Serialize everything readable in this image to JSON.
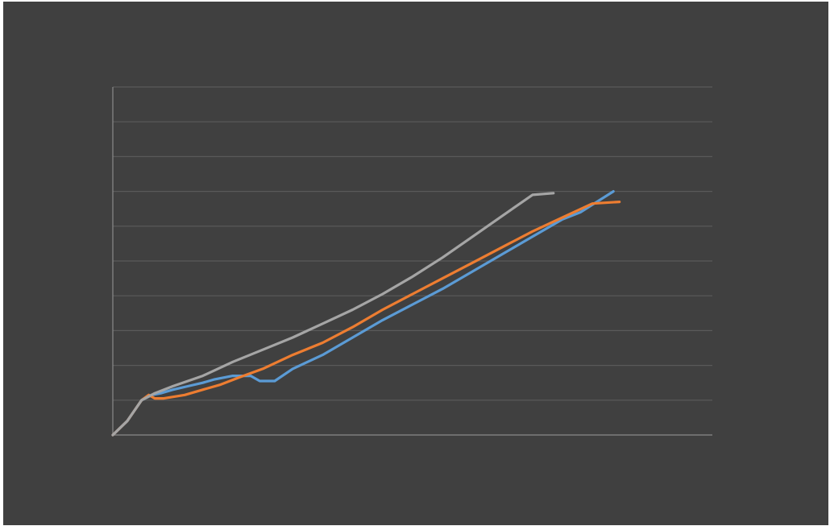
{
  "chart_data": {
    "type": "line",
    "title": "",
    "xlabel": "",
    "ylabel": "",
    "xlim": [
      0,
      100
    ],
    "ylim": [
      0,
      100
    ],
    "grid": true,
    "legend": "none",
    "background_color": "#404040",
    "series": [
      {
        "color": "#5b9bd5",
        "points": [
          [
            0,
            0
          ],
          [
            2.4,
            4
          ],
          [
            4.8,
            10
          ],
          [
            6.5,
            11.5
          ],
          [
            8,
            12
          ],
          [
            10,
            13
          ],
          [
            12.5,
            14
          ],
          [
            15,
            15
          ],
          [
            17,
            16
          ],
          [
            20,
            17
          ],
          [
            23,
            17
          ],
          [
            24.5,
            15.5
          ],
          [
            27,
            15.5
          ],
          [
            30,
            19
          ],
          [
            35,
            23
          ],
          [
            40,
            28
          ],
          [
            45,
            33
          ],
          [
            50,
            37.5
          ],
          [
            55,
            42
          ],
          [
            60,
            47
          ],
          [
            65,
            52
          ],
          [
            70,
            57
          ],
          [
            75,
            62
          ],
          [
            78,
            64
          ],
          [
            83.5,
            70
          ]
        ]
      },
      {
        "color": "#ed7d31",
        "points": [
          [
            0,
            0
          ],
          [
            2.4,
            4
          ],
          [
            4.8,
            10
          ],
          [
            6,
            11.5
          ],
          [
            7,
            10.5
          ],
          [
            8.5,
            10.5
          ],
          [
            12,
            11.5
          ],
          [
            15,
            13
          ],
          [
            18,
            14.5
          ],
          [
            21,
            16.5
          ],
          [
            25,
            19
          ],
          [
            30,
            23
          ],
          [
            35,
            26.5
          ],
          [
            40,
            31
          ],
          [
            45,
            36
          ],
          [
            50,
            40.5
          ],
          [
            55,
            45
          ],
          [
            60,
            49.5
          ],
          [
            65,
            54
          ],
          [
            70,
            58.5
          ],
          [
            75,
            62.5
          ],
          [
            80,
            66.5
          ],
          [
            84.5,
            67
          ]
        ]
      },
      {
        "color": "#a5a5a5",
        "points": [
          [
            0,
            0
          ],
          [
            2.4,
            4
          ],
          [
            4.8,
            10
          ],
          [
            7,
            12
          ],
          [
            10,
            14
          ],
          [
            15,
            17
          ],
          [
            20,
            21
          ],
          [
            25,
            24.5
          ],
          [
            30,
            28
          ],
          [
            35,
            32
          ],
          [
            40,
            36
          ],
          [
            45,
            40.5
          ],
          [
            50,
            45.5
          ],
          [
            55,
            51
          ],
          [
            60,
            57
          ],
          [
            65,
            63
          ],
          [
            70,
            69
          ],
          [
            73.5,
            69.5
          ]
        ]
      }
    ]
  }
}
